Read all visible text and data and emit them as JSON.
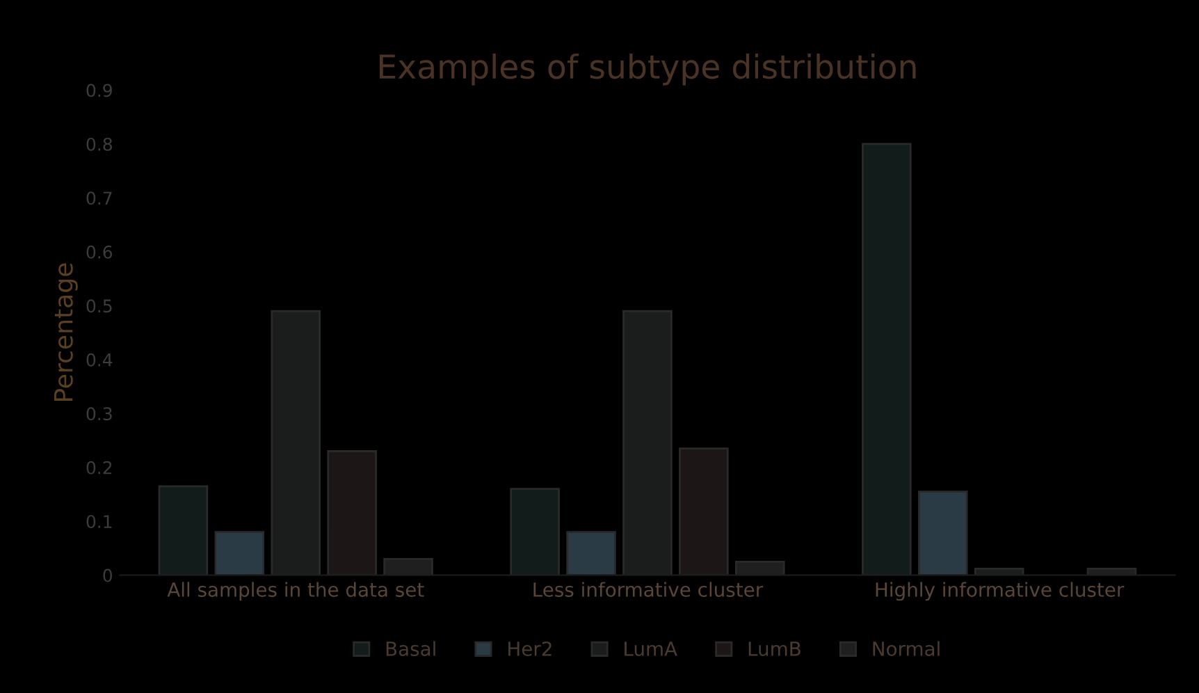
{
  "chart_data": {
    "type": "bar",
    "title": "Examples of subtype distribution",
    "ylabel": "Percentage",
    "categories": [
      "All samples in the data set",
      "Less informative cluster",
      "Highly informative cluster"
    ],
    "series": [
      {
        "name": "Basal",
        "color": "#121c1a",
        "values": [
          0.165,
          0.16,
          0.8
        ]
      },
      {
        "name": "Her2",
        "color": "#2b3b46",
        "values": [
          0.08,
          0.08,
          0.155
        ]
      },
      {
        "name": "LumA",
        "color": "#1b1d1c",
        "values": [
          0.49,
          0.49,
          0.012
        ]
      },
      {
        "name": "LumB",
        "color": "#1c1616",
        "values": [
          0.23,
          0.235,
          null
        ]
      },
      {
        "name": "Normal",
        "color": "#1f1f1f",
        "values": [
          0.03,
          0.025,
          0.012
        ]
      }
    ],
    "ylim": [
      0,
      0.9
    ],
    "yticks": [
      {
        "value": 0,
        "label": "0"
      },
      0.1,
      0.2,
      0.3,
      0.4,
      0.5,
      0.6,
      0.7,
      0.8,
      0.9
    ],
    "grid": false,
    "legend": "bottom"
  }
}
